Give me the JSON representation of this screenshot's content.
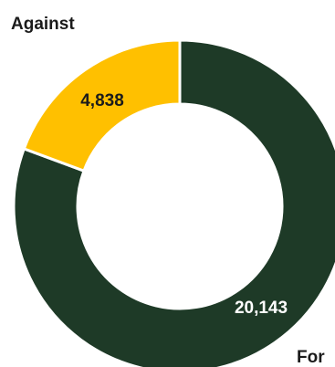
{
  "chart_data": {
    "type": "pie",
    "variant": "donut",
    "title": "",
    "slices": [
      {
        "label": "For",
        "value": 20143,
        "value_label": "20,143",
        "color": "#1e3a27",
        "value_label_color": "#ffffff"
      },
      {
        "label": "Against",
        "value": 4838,
        "value_label": "4,838",
        "color": "#ffc000",
        "value_label_color": "#1b1b1b"
      }
    ],
    "legend": "none",
    "background": "#ffffff",
    "separator_color": "#ffffff"
  }
}
